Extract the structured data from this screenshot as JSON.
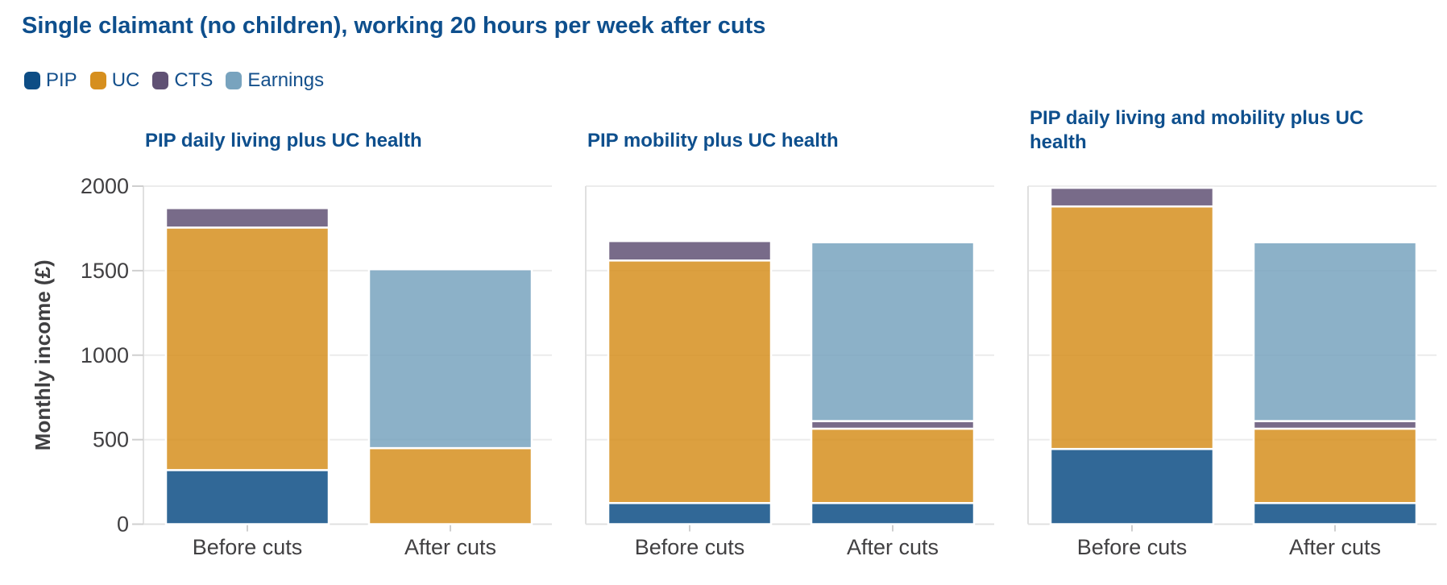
{
  "chart_data": {
    "type": "bar",
    "stacked": true,
    "title": "Single claimant (no children), working 20 hours per week after cuts",
    "ylabel": "Monthly income (£)",
    "unit": "£ per month",
    "ylim": [
      0,
      2000
    ],
    "yticks": [
      0,
      500,
      1000,
      1500,
      2000
    ],
    "categories": [
      "Before cuts",
      "After cuts"
    ],
    "legend": [
      "PIP",
      "UC",
      "CTS",
      "Earnings"
    ],
    "colors": {
      "PIP": "#0D4D85",
      "UC": "#D68F1E",
      "CTS": "#605174",
      "Earnings": "#78A3BE"
    },
    "bar_fill_opacity": 0.85,
    "grid": "horizontal",
    "legend_position": "top-left",
    "panels": [
      {
        "title": "PIP daily living plus UC health",
        "series": [
          {
            "name": "PIP",
            "values": [
              320,
              0
            ]
          },
          {
            "name": "UC",
            "values": [
              1435,
              450
            ]
          },
          {
            "name": "CTS",
            "values": [
              115,
              0
            ]
          },
          {
            "name": "Earnings",
            "values": [
              0,
              1058
            ]
          }
        ]
      },
      {
        "title": "PIP mobility plus UC health",
        "series": [
          {
            "name": "PIP",
            "values": [
              125,
              125
            ]
          },
          {
            "name": "UC",
            "values": [
              1435,
              440
            ]
          },
          {
            "name": "CTS",
            "values": [
              115,
              45
            ]
          },
          {
            "name": "Earnings",
            "values": [
              0,
              1058
            ]
          }
        ]
      },
      {
        "title": "PIP daily living and mobility plus UC health",
        "series": [
          {
            "name": "PIP",
            "values": [
              445,
              125
            ]
          },
          {
            "name": "UC",
            "values": [
              1435,
              440
            ]
          },
          {
            "name": "CTS",
            "values": [
              110,
              45
            ]
          },
          {
            "name": "Earnings",
            "values": [
              0,
              1058
            ]
          }
        ]
      }
    ]
  }
}
